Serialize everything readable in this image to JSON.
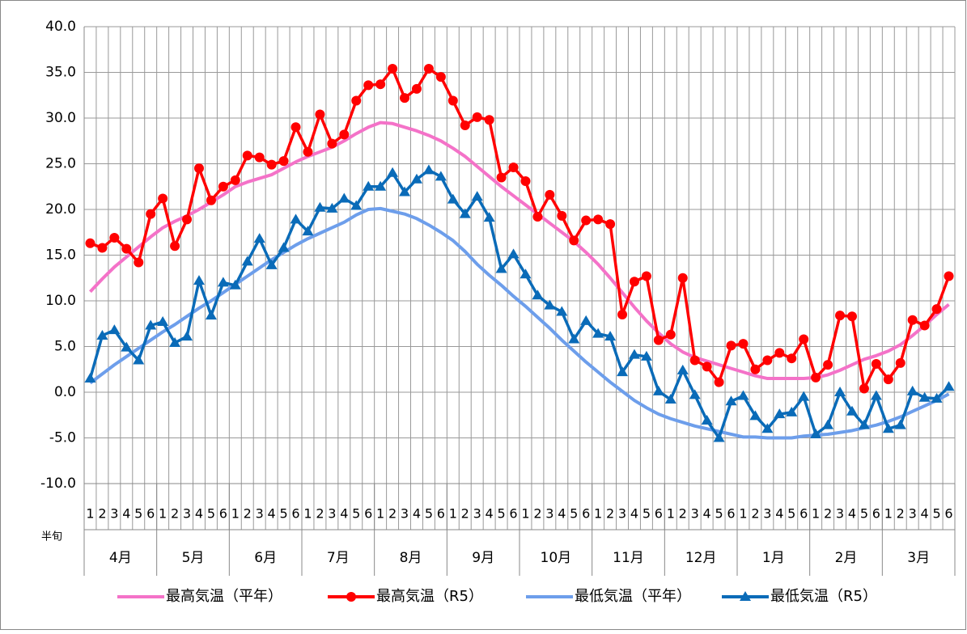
{
  "chart_data": {
    "type": "line",
    "categories": [
      "1",
      "2",
      "3",
      "4",
      "5",
      "6",
      "1",
      "2",
      "3",
      "4",
      "5",
      "6",
      "1",
      "2",
      "3",
      "4",
      "5",
      "6",
      "1",
      "2",
      "3",
      "4",
      "5",
      "6",
      "1",
      "2",
      "3",
      "4",
      "5",
      "6",
      "1",
      "2",
      "3",
      "4",
      "5",
      "6",
      "1",
      "2",
      "3",
      "4",
      "5",
      "6",
      "1",
      "2",
      "3",
      "4",
      "5",
      "6",
      "1",
      "2",
      "3",
      "4",
      "5",
      "6",
      "1",
      "2",
      "3",
      "4",
      "5",
      "6",
      "1",
      "2",
      "3",
      "4",
      "5",
      "6",
      "1",
      "2",
      "3",
      "4",
      "5",
      "6"
    ],
    "groups": [
      "4月",
      "5月",
      "6月",
      "7月",
      "8月",
      "9月",
      "10月",
      "11月",
      "12月",
      "1月",
      "2月",
      "3月"
    ],
    "xlabel": "半旬",
    "ylim": [
      -10,
      40
    ],
    "yticks": [
      {
        "value": -10,
        "label": "-10.0"
      },
      {
        "value": -5,
        "label": "-5.0"
      },
      {
        "value": 0,
        "label": "0.0"
      },
      {
        "value": 5,
        "label": "5.0"
      },
      {
        "value": 10,
        "label": "10.0"
      },
      {
        "value": 15,
        "label": "15.0"
      },
      {
        "value": 20,
        "label": "20.0"
      },
      {
        "value": 25,
        "label": "25.0"
      },
      {
        "value": 30,
        "label": "30.0"
      },
      {
        "value": 35,
        "label": "35.0"
      },
      {
        "value": 40,
        "label": "40.0"
      }
    ],
    "grid": true,
    "legend": "bottom",
    "series": [
      {
        "name": "最高気温（平年）",
        "color": "#f472c8",
        "marker": "none",
        "values": [
          11.0,
          12.4,
          13.7,
          14.8,
          15.9,
          17.0,
          18.0,
          18.7,
          19.3,
          20.0,
          20.8,
          21.6,
          22.5,
          23.0,
          23.4,
          23.8,
          24.5,
          25.2,
          25.8,
          26.3,
          26.8,
          27.5,
          28.3,
          29.0,
          29.5,
          29.4,
          29.0,
          28.6,
          28.1,
          27.5,
          26.7,
          25.8,
          24.7,
          23.6,
          22.5,
          21.5,
          20.5,
          19.5,
          18.5,
          17.5,
          16.5,
          15.3,
          14.0,
          12.5,
          10.9,
          9.3,
          7.8,
          6.5,
          5.3,
          4.4,
          3.8,
          3.4,
          3.0,
          2.6,
          2.2,
          1.8,
          1.5,
          1.5,
          1.5,
          1.5,
          1.6,
          1.9,
          2.4,
          3.0,
          3.6,
          4.0,
          4.5,
          5.2,
          6.2,
          7.3,
          8.5,
          9.6
        ]
      },
      {
        "name": "最高気温（R5）",
        "color": "#ff0000",
        "marker": "circle",
        "values": [
          16.3,
          15.8,
          16.9,
          15.7,
          14.2,
          19.5,
          21.2,
          16.0,
          18.9,
          24.5,
          21.0,
          22.5,
          23.2,
          25.9,
          25.7,
          24.9,
          25.3,
          29.0,
          26.3,
          30.4,
          27.2,
          28.2,
          31.9,
          33.6,
          33.7,
          35.4,
          32.2,
          33.2,
          35.4,
          34.5,
          31.9,
          29.2,
          30.1,
          29.8,
          23.5,
          24.6,
          23.1,
          19.2,
          21.6,
          19.3,
          16.6,
          18.8,
          18.9,
          18.4,
          8.5,
          12.1,
          12.7,
          5.7,
          6.3,
          12.5,
          3.5,
          2.8,
          1.1,
          5.1,
          5.3,
          2.5,
          3.5,
          4.3,
          3.7,
          5.8,
          1.6,
          3.0,
          8.4,
          8.3,
          0.4,
          3.1,
          1.4,
          3.2,
          7.9,
          7.3,
          9.1,
          12.7
        ]
      },
      {
        "name": "最低気温（平年）",
        "color": "#6d9eeb",
        "marker": "none",
        "values": [
          1.0,
          2.0,
          3.0,
          3.9,
          4.8,
          5.7,
          6.6,
          7.4,
          8.3,
          9.2,
          10.0,
          10.9,
          11.8,
          12.7,
          13.6,
          14.5,
          15.3,
          16.1,
          16.8,
          17.4,
          18.0,
          18.6,
          19.4,
          20.0,
          20.1,
          19.8,
          19.5,
          19.0,
          18.3,
          17.5,
          16.6,
          15.4,
          14.0,
          12.8,
          11.7,
          10.5,
          9.4,
          8.2,
          7.0,
          5.7,
          4.5,
          3.3,
          2.2,
          1.1,
          0.1,
          -0.9,
          -1.7,
          -2.4,
          -2.9,
          -3.3,
          -3.7,
          -4.0,
          -4.3,
          -4.6,
          -4.9,
          -4.9,
          -5.0,
          -5.0,
          -5.0,
          -4.8,
          -4.7,
          -4.6,
          -4.4,
          -4.2,
          -3.9,
          -3.6,
          -3.2,
          -2.7,
          -2.1,
          -1.5,
          -0.9,
          -0.2
        ]
      },
      {
        "name": "最低気温（R5）",
        "color": "#0a6bb8",
        "marker": "triangle",
        "values": [
          1.5,
          6.2,
          6.8,
          4.9,
          3.5,
          7.3,
          7.7,
          5.4,
          6.1,
          12.2,
          8.4,
          12.0,
          11.7,
          14.3,
          16.8,
          13.9,
          15.8,
          18.9,
          17.6,
          20.2,
          20.1,
          21.2,
          20.4,
          22.5,
          22.5,
          24.0,
          21.9,
          23.3,
          24.3,
          23.6,
          21.1,
          19.5,
          21.4,
          19.1,
          13.5,
          15.1,
          12.9,
          10.6,
          9.5,
          8.8,
          5.8,
          7.8,
          6.4,
          6.1,
          2.2,
          4.1,
          3.9,
          0.1,
          -0.8,
          2.4,
          -0.3,
          -3.1,
          -5.0,
          -1.0,
          -0.4,
          -2.6,
          -4.0,
          -2.4,
          -2.2,
          -0.5,
          -4.6,
          -3.6,
          0.0,
          -2.1,
          -3.6,
          -0.4,
          -4.0,
          -3.6,
          0.1,
          -0.6,
          -0.7,
          0.6
        ]
      }
    ]
  }
}
